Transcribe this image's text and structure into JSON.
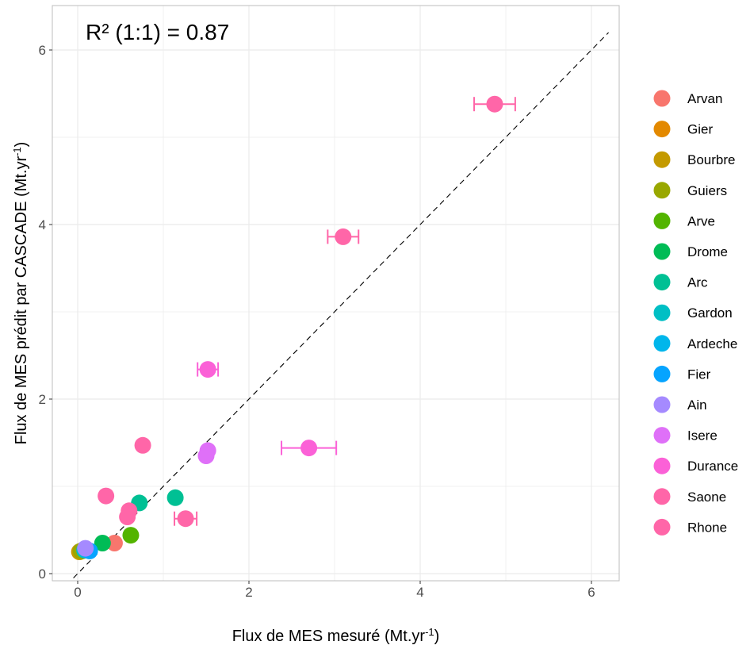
{
  "chart_data": {
    "type": "scatter",
    "title": "",
    "annotation": "R² (1:1) = 0.87",
    "xlabel": "Flux de MES mesuré (Mt.yr",
    "xlabel_sup": "-1",
    "xlabel_end": ")",
    "ylabel": "Flux de MES prédit par CASCADE (Mt.yr",
    "ylabel_sup": "-1",
    "ylabel_end": ")",
    "xlim": [
      -0.3,
      6.2
    ],
    "ylim": [
      -0.05,
      6.5
    ],
    "xticks": [
      0,
      2,
      4,
      6
    ],
    "yticks": [
      0,
      2,
      4,
      6
    ],
    "grid": true,
    "reference_line": "1:1",
    "legend_position": "right",
    "series": [
      {
        "name": "Arvan",
        "color": "#F8766D",
        "points": [
          {
            "x": 0.43,
            "y": 0.35
          }
        ]
      },
      {
        "name": "Gier",
        "color": "#E38900",
        "points": [
          {
            "x": 0.05,
            "y": 0.26
          }
        ]
      },
      {
        "name": "Bourbre",
        "color": "#C49A00",
        "points": [
          {
            "x": 0.02,
            "y": 0.25
          }
        ]
      },
      {
        "name": "Guiers",
        "color": "#99A800",
        "points": [
          {
            "x": 0.04,
            "y": 0.26
          }
        ]
      },
      {
        "name": "Arve",
        "color": "#53B400",
        "points": [
          {
            "x": 0.62,
            "y": 0.44
          }
        ]
      },
      {
        "name": "Drome",
        "color": "#00BC56",
        "points": [
          {
            "x": 0.29,
            "y": 0.35
          }
        ]
      },
      {
        "name": "Arc",
        "color": "#00C094",
        "points": [
          {
            "x": 0.72,
            "y": 0.81
          },
          {
            "x": 1.14,
            "y": 0.87
          }
        ]
      },
      {
        "name": "Gardon",
        "color": "#00BFC4",
        "points": [
          {
            "x": 0.08,
            "y": 0.27
          }
        ]
      },
      {
        "name": "Ardeche",
        "color": "#00B6EB",
        "points": [
          {
            "x": 0.11,
            "y": 0.27
          }
        ]
      },
      {
        "name": "Fier",
        "color": "#06A4FF",
        "points": [
          {
            "x": 0.14,
            "y": 0.26
          }
        ]
      },
      {
        "name": "Ain",
        "color": "#A58AFF",
        "points": [
          {
            "x": 0.09,
            "y": 0.29
          }
        ]
      },
      {
        "name": "Isere",
        "color": "#DF70F8",
        "points": [
          {
            "x": 1.52,
            "y": 1.41
          },
          {
            "x": 1.5,
            "y": 1.35
          }
        ]
      },
      {
        "name": "Durance",
        "color": "#FB61D7",
        "points": [
          {
            "x": 1.52,
            "y": 2.34,
            "xerr": [
              1.4,
              1.64
            ]
          },
          {
            "x": 2.7,
            "y": 1.44,
            "xerr": [
              2.38,
              3.02
            ]
          }
        ]
      },
      {
        "name": "Saone",
        "color": "#FF66A8",
        "points": [
          {
            "x": 0.33,
            "y": 0.89
          },
          {
            "x": 0.6,
            "y": 0.72
          },
          {
            "x": 0.58,
            "y": 0.65
          }
        ]
      },
      {
        "name": "Rhone",
        "color": "#FF66A8",
        "points": [
          {
            "x": 0.76,
            "y": 1.47
          },
          {
            "x": 1.26,
            "y": 0.63,
            "xerr": [
              1.13,
              1.39
            ]
          },
          {
            "x": 3.1,
            "y": 3.86,
            "xerr": [
              2.92,
              3.28
            ]
          },
          {
            "x": 4.87,
            "y": 5.38,
            "xerr": [
              4.63,
              5.11
            ]
          }
        ]
      }
    ]
  }
}
